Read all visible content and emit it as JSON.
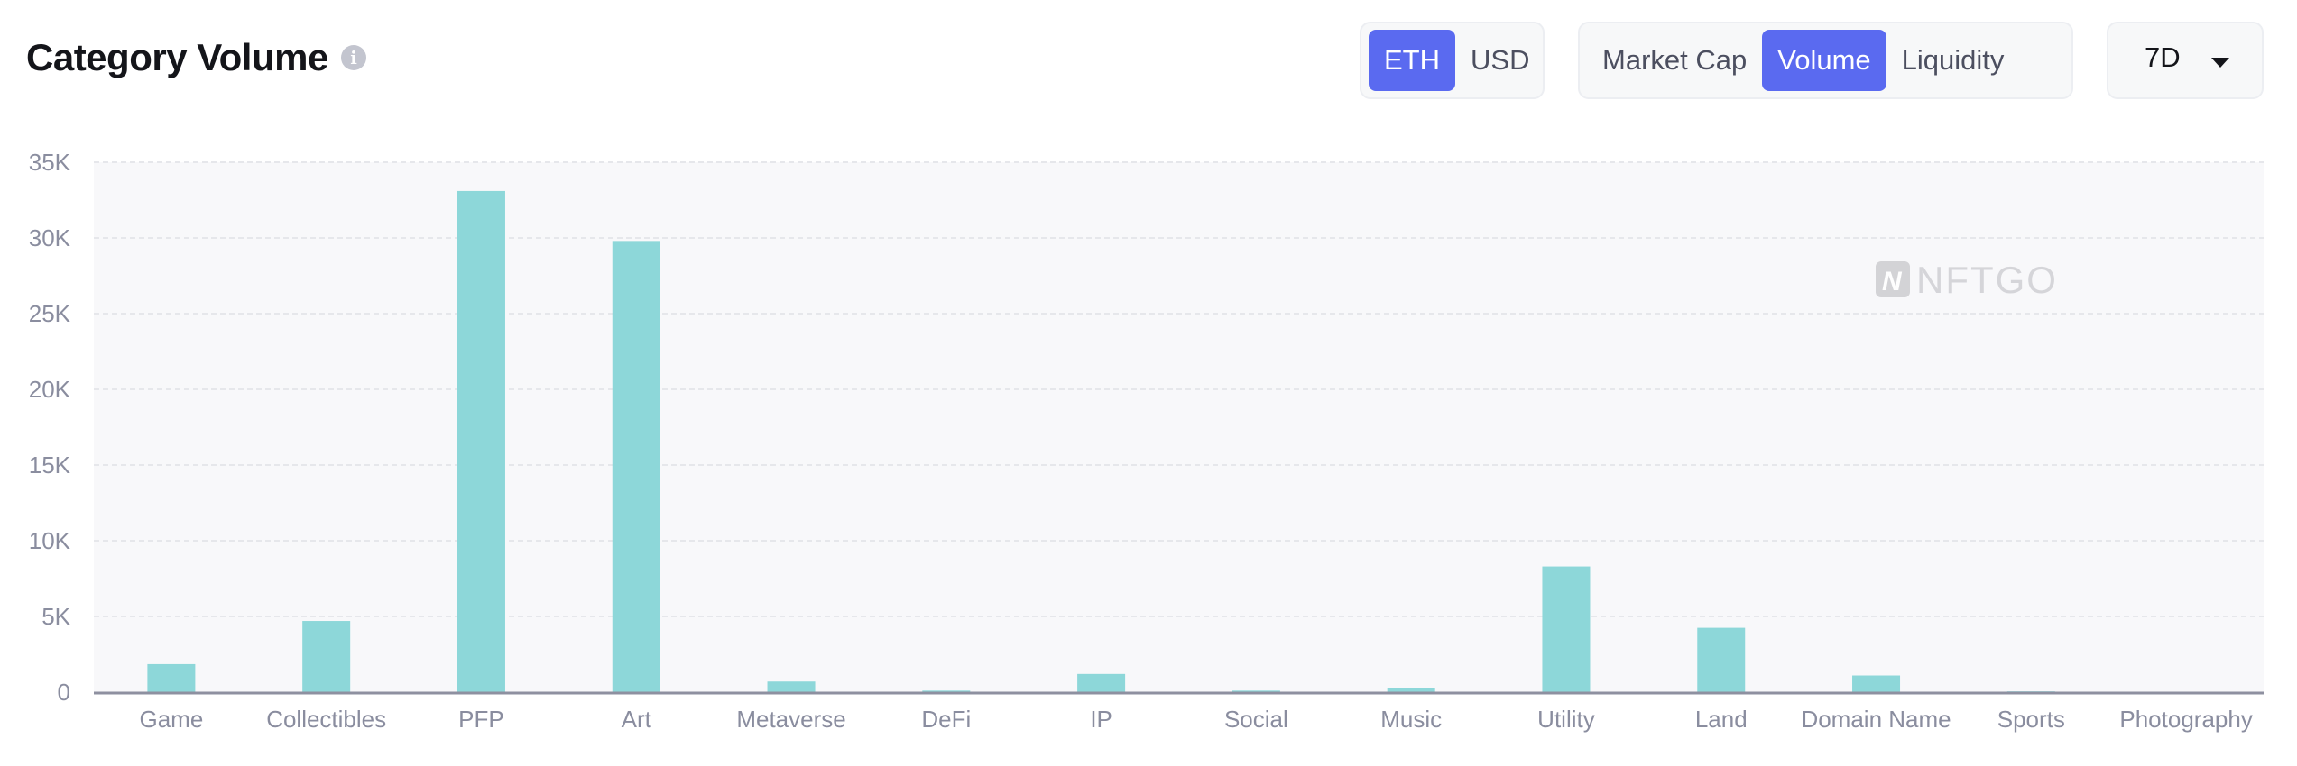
{
  "header": {
    "title": "Category Volume",
    "info_icon": "info-icon"
  },
  "currency": {
    "options": [
      "ETH",
      "USD"
    ],
    "selected": "ETH"
  },
  "metric": {
    "options": [
      "Market Cap",
      "Volume",
      "Liquidity"
    ],
    "selected": "Volume"
  },
  "period": {
    "selected": "7D"
  },
  "watermark": "NFTGO",
  "colors": {
    "accent": "#5a6af0",
    "bar": "#8dd7d9",
    "plot_bg": "#f8f8fa"
  },
  "chart_data": {
    "type": "bar",
    "title": "Category Volume",
    "categories": [
      "Game",
      "Collectibles",
      "PFP",
      "Art",
      "Metaverse",
      "DeFi",
      "IP",
      "Social",
      "Music",
      "Utility",
      "Land",
      "Domain Name",
      "Sports",
      "Photography"
    ],
    "values": [
      1850,
      4700,
      33100,
      29800,
      700,
      100,
      1200,
      100,
      250,
      8300,
      4250,
      1100,
      50,
      20
    ],
    "ylim": [
      0,
      35000
    ],
    "yticks": [
      0,
      5000,
      10000,
      15000,
      20000,
      25000,
      30000,
      35000
    ],
    "ytick_labels": [
      "0",
      "5K",
      "10K",
      "15K",
      "20K",
      "25K",
      "30K",
      "35K"
    ],
    "grid": true,
    "legend": "none"
  }
}
